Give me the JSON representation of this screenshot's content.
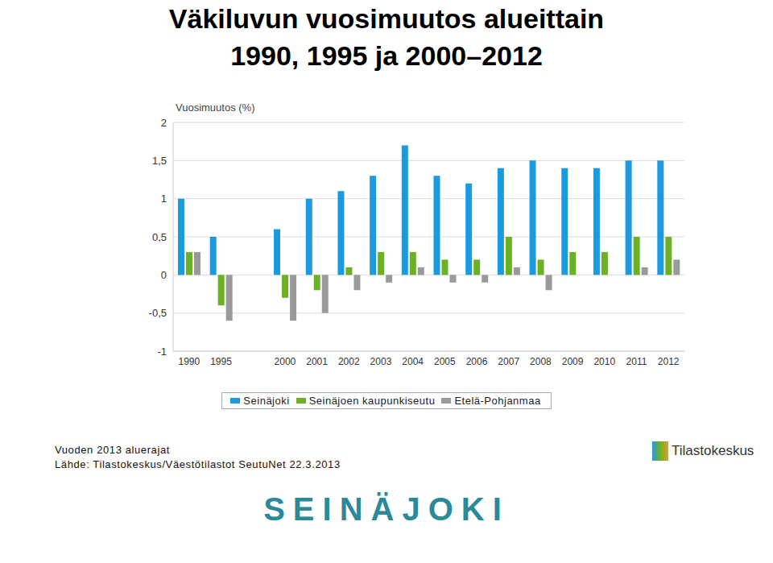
{
  "chart_data": {
    "type": "bar",
    "title": "Väkiluvun vuosimuutos alueittain",
    "subtitle": "1990, 1995 ja 2000–2012",
    "y_label": "Vuosimuutos (%)",
    "categories": [
      "1990",
      "1995",
      null,
      "2000",
      "2001",
      "2002",
      "2003",
      "2004",
      "2005",
      "2006",
      "2007",
      "2008",
      "2009",
      "2010",
      "2011",
      "2012"
    ],
    "series": [
      {
        "name": "Seinäjoki",
        "color": "#1a9be0",
        "values": [
          1.0,
          0.5,
          null,
          0.6,
          1.0,
          1.1,
          1.3,
          1.7,
          1.3,
          1.2,
          1.4,
          1.5,
          1.4,
          1.4,
          1.5,
          1.5
        ]
      },
      {
        "name": "Seinäjoen kaupunkiseutu",
        "color": "#6cb024",
        "values": [
          0.3,
          -0.4,
          null,
          -0.3,
          -0.2,
          0.1,
          0.3,
          0.3,
          0.2,
          0.2,
          0.5,
          0.2,
          0.3,
          0.3,
          0.5,
          0.5
        ]
      },
      {
        "name": "Etelä-Pohjanmaa",
        "color": "#9a9a9a",
        "values": [
          0.3,
          -0.6,
          null,
          -0.6,
          -0.5,
          -0.2,
          -0.1,
          0.1,
          -0.1,
          -0.1,
          0.1,
          -0.2,
          0,
          0,
          0.1,
          0.2
        ]
      }
    ],
    "ylim": [
      -1,
      2
    ],
    "yticks": [
      -1,
      {
        "value": -0.5,
        "label": "-0,5"
      },
      0,
      {
        "value": 0.5,
        "label": "0,5"
      },
      1,
      {
        "value": 1.5,
        "label": "1,5"
      },
      2
    ],
    "grid": true,
    "legend": "bottom",
    "annotations": [
      "Vuoden 2013 aluerajat",
      "Lähde: Tilastokeskus/Väestötilastot SeutuNet 22.3.2013",
      "Tilastokeskus",
      "SEINÄJOKI"
    ]
  }
}
